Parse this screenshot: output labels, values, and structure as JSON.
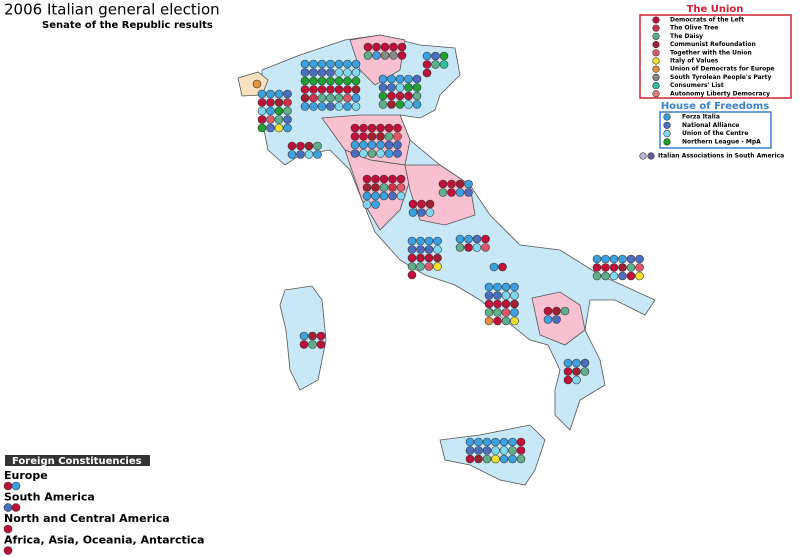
{
  "header": {
    "title": "2006 Italian general election",
    "subtitle": "Senate of the Republic results"
  },
  "legend": {
    "union": {
      "title": "The Union",
      "items": [
        {
          "name": "Democrats of the Left",
          "color": "#c0103a"
        },
        {
          "name": "The Olive Tree",
          "color": "#d0304a"
        },
        {
          "name": "The Daisy",
          "color": "#5fb08a"
        },
        {
          "name": "Communist Refoundation",
          "color": "#a02030"
        },
        {
          "name": "Together with the Union",
          "color": "#e05868"
        },
        {
          "name": "Italy of Values",
          "color": "#f0e030"
        },
        {
          "name": "Union of Democrats for Europe",
          "color": "#e09040"
        },
        {
          "name": "South Tyrolean People's Party",
          "color": "#888888"
        },
        {
          "name": "Consumers' List",
          "color": "#30c0a0"
        },
        {
          "name": "Autonomy Liberty Democracy",
          "color": "#e08080"
        }
      ]
    },
    "freedoms": {
      "title": "House of Freedoms",
      "items": [
        {
          "name": "Forza Italia",
          "color": "#3aa0e0"
        },
        {
          "name": "National Alliance",
          "color": "#4a6ec0"
        },
        {
          "name": "Union of the Centre",
          "color": "#80d8f0"
        },
        {
          "name": "Northern League - MpA",
          "color": "#20a030"
        }
      ]
    },
    "abroad": {
      "name": "Italian Associations in South America"
    }
  },
  "foreign": {
    "title": "Foreign Constituencies",
    "areas": [
      "Europe",
      "South America",
      "North and Central America",
      "Africa, Asia, Oceania, Antarctica"
    ]
  }
}
